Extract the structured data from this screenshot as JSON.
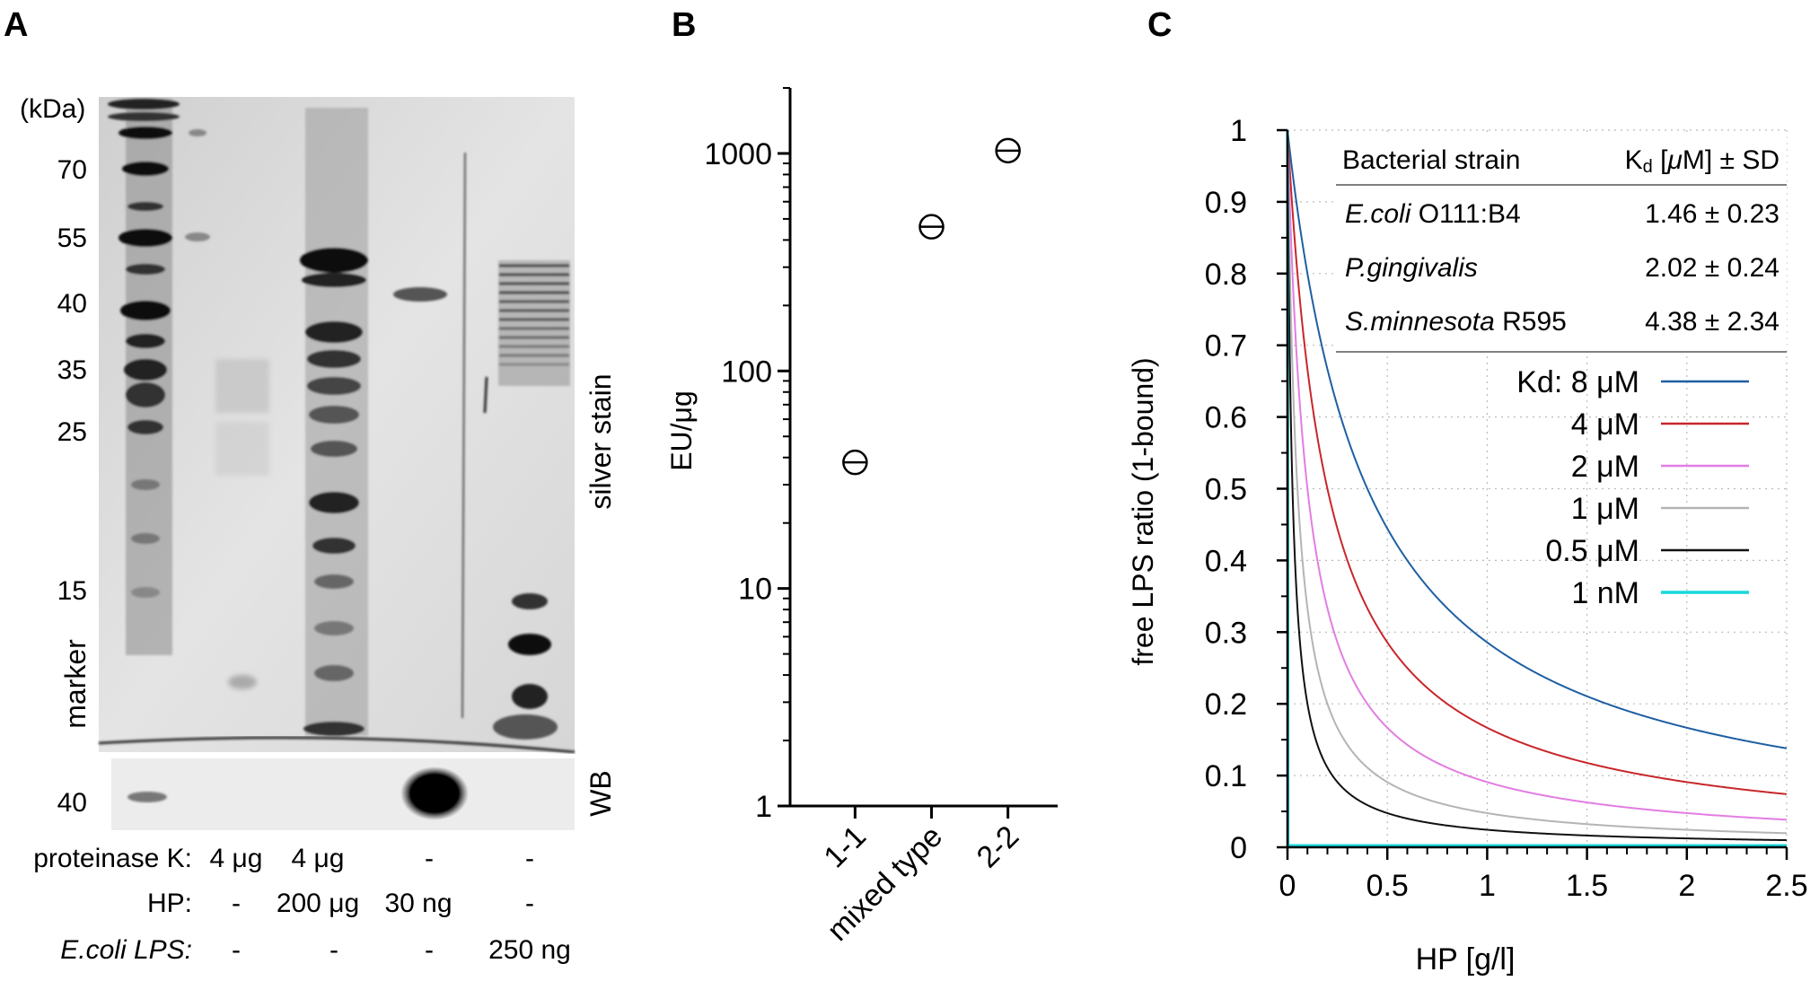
{
  "panels": {
    "A": {
      "letter": "A",
      "unit_label": "(kDa)",
      "marker_sizes": [
        "70",
        "55",
        "40",
        "35",
        "25",
        "15"
      ],
      "wb_marker_size": "40",
      "side_labels": {
        "silver": "silver stain",
        "marker": "marker",
        "wb": "WB"
      },
      "treatments": [
        {
          "label": "proteinase K:",
          "lane_values": [
            "4 μg",
            "4 μg",
            "-",
            "-"
          ]
        },
        {
          "label": "HP:",
          "lane_values": [
            "-",
            "200 μg",
            "30 ng",
            "-"
          ]
        },
        {
          "label": "E.coli LPS:",
          "lane_values": [
            "-",
            "-",
            "-",
            "250 ng"
          ]
        }
      ]
    },
    "B": {
      "letter": "B",
      "chart_data": {
        "type": "scatter",
        "y_scale": "log",
        "ylabel": "EU/μg",
        "ylim": [
          1,
          2000
        ],
        "y_ticks": [
          1,
          10,
          100,
          1000
        ],
        "y_tick_labels": [
          "1",
          "10",
          "100",
          "1000"
        ],
        "categories": [
          "1-1",
          "mixed type",
          "2-2"
        ],
        "values": [
          38,
          460,
          1030
        ],
        "markers": "open circle with error bar"
      }
    },
    "C": {
      "letter": "C",
      "chart_data": {
        "type": "line",
        "xlabel": "HP [g/l]",
        "ylabel": "free LPS ratio (1-bound)",
        "xlim": [
          0,
          2.5
        ],
        "ylim": [
          0,
          1
        ],
        "x_ticks": [
          0,
          0.5,
          1,
          1.5,
          2,
          2.5
        ],
        "x_tick_labels": [
          "0",
          "0.5",
          "1",
          "1.5",
          "2",
          "2.5"
        ],
        "y_ticks": [
          0,
          0.1,
          0.2,
          0.3,
          0.4,
          0.5,
          0.6,
          0.7,
          0.8,
          0.9,
          1
        ],
        "y_tick_labels": [
          "0",
          "0.1",
          "0.2",
          "0.3",
          "0.4",
          "0.5",
          "0.6",
          "0.7",
          "0.8",
          "0.9",
          "1"
        ],
        "grid": true,
        "curve_model": "free = Kd / (Kd + c), c in g/l",
        "series": [
          {
            "name": "Kd: 8 μM",
            "kd_g_per_l": 0.4,
            "color": "#1f5fa3"
          },
          {
            "name": "4 μM",
            "kd_g_per_l": 0.2,
            "color": "#c8262b"
          },
          {
            "name": "2 μM",
            "kd_g_per_l": 0.1,
            "color": "#e27de2"
          },
          {
            "name": "1 μM",
            "kd_g_per_l": 0.05,
            "color": "#b4b4b4"
          },
          {
            "name": "0.5 μM",
            "kd_g_per_l": 0.025,
            "color": "#111111"
          },
          {
            "name": "1 nM",
            "kd_g_per_l": 5e-05,
            "color": "#19d9dd"
          }
        ],
        "table": {
          "header": [
            "Bacterial strain",
            "K",
            "d",
            " [",
            "μ",
            "M] ± SD"
          ],
          "rows": [
            {
              "italic": "E.coli",
              "plain": " O111:B4",
              "value": "1.46 ± 0.23"
            },
            {
              "italic": "P.gingivalis",
              "plain": "",
              "value": "2.02 ± 0.24"
            },
            {
              "italic": "S.minnesota",
              "plain": " R595",
              "value": "4.38 ± 2.34"
            }
          ]
        }
      }
    }
  }
}
